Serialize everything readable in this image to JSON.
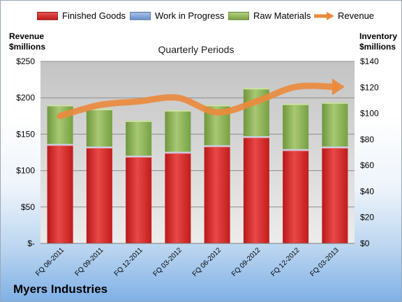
{
  "company": "Myers Industries",
  "chart_data": {
    "type": "bar",
    "subtype": "stacked-bar-with-line",
    "title": "Quarterly Periods",
    "ylabel_left": "Revenue\n$millions",
    "ylabel_right": "Inventory\n$millions",
    "categories": [
      "FQ 06-2011",
      "FQ 09-2011",
      "FQ 12-2011",
      "FQ 03-2012",
      "FQ 06-2012",
      "FQ 09-2012",
      "FQ 12-2012",
      "FQ 03-2013"
    ],
    "yticks_left": [
      "$-",
      "$50",
      "$100",
      "$150",
      "$200",
      "$250"
    ],
    "yticks_right": [
      "$0",
      "$20",
      "$40",
      "$60",
      "$80",
      "$100",
      "$120",
      "$140"
    ],
    "ylim_left": [
      0,
      250
    ],
    "ylim_right": [
      0,
      140
    ],
    "grid": true,
    "legend_position": "top",
    "series": [
      {
        "name": "Finished Goods",
        "axis": "right",
        "color": "#d62a2a",
        "values": [
          76,
          74,
          67,
          70,
          75,
          82,
          72,
          74
        ]
      },
      {
        "name": "Work in Progress",
        "axis": "right",
        "color": "#7d9fd3",
        "values": [
          0.5,
          0.5,
          0.5,
          0.5,
          0.5,
          0.5,
          0.5,
          0.5
        ]
      },
      {
        "name": "Raw Materials",
        "axis": "right",
        "color": "#8cb25a",
        "values": [
          30,
          29,
          27,
          32,
          31,
          37,
          35,
          34
        ]
      },
      {
        "name": "Revenue",
        "axis": "left",
        "type": "line",
        "color": "#ea8a3e",
        "values": [
          175,
          190,
          195,
          200,
          180,
          195,
          215,
          215
        ]
      }
    ]
  }
}
